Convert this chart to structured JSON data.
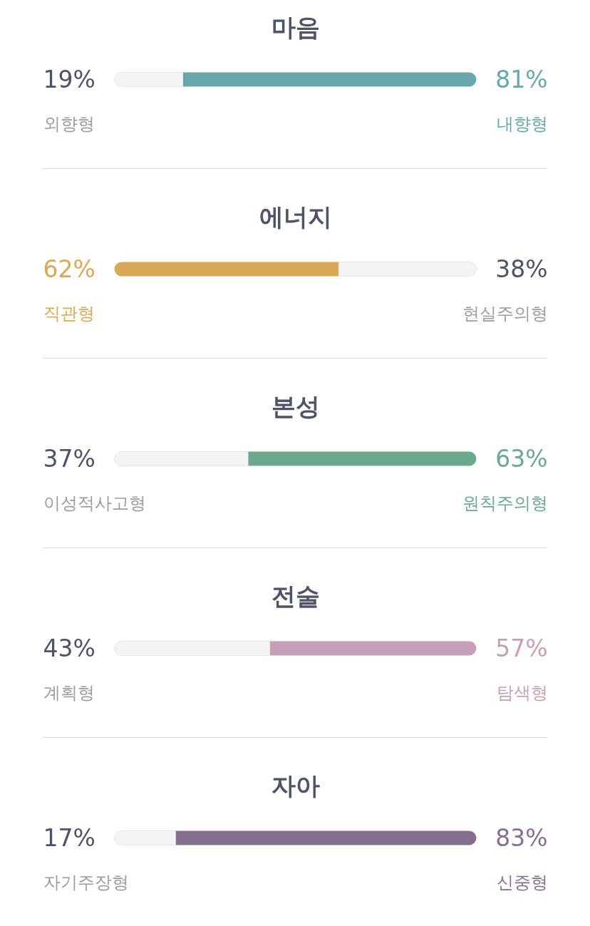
{
  "chart_data": [
    {
      "type": "bar",
      "orientation": "horizontal",
      "stacked": true,
      "title": "마음",
      "categories": [
        null
      ],
      "tick_labels": false,
      "series": [
        {
          "name": "외향형",
          "color": "#f4f4f4",
          "values": [
            19
          ],
          "value_labels": [
            "19%"
          ]
        },
        {
          "name": "내향형",
          "color": "#68a7aa",
          "values": [
            81
          ],
          "value_labels": [
            "81%"
          ]
        }
      ]
    },
    {
      "type": "bar",
      "orientation": "horizontal",
      "stacked": true,
      "title": "에너지",
      "categories": [
        null
      ],
      "tick_labels": false,
      "series": [
        {
          "name": "직관형",
          "color": "#d9a956",
          "values": [
            62
          ],
          "value_labels": [
            "62%"
          ]
        },
        {
          "name": "현실주의형",
          "color": "#f4f4f4",
          "values": [
            38
          ],
          "value_labels": [
            "38%"
          ]
        }
      ]
    },
    {
      "type": "bar",
      "orientation": "horizontal",
      "stacked": true,
      "title": "본성",
      "categories": [
        null
      ],
      "tick_labels": false,
      "series": [
        {
          "name": "이성적사고형",
          "color": "#f4f4f4",
          "values": [
            37
          ],
          "value_labels": [
            "37%"
          ]
        },
        {
          "name": "원칙주의형",
          "color": "#6aa98a",
          "values": [
            63
          ],
          "value_labels": [
            "63%"
          ]
        }
      ]
    },
    {
      "type": "bar",
      "orientation": "horizontal",
      "stacked": true,
      "title": "전술",
      "categories": [
        null
      ],
      "tick_labels": false,
      "series": [
        {
          "name": "계획형",
          "color": "#f4f4f4",
          "values": [
            43
          ],
          "value_labels": [
            "43%"
          ]
        },
        {
          "name": "탐색형",
          "color": "#c8a0b5",
          "values": [
            57
          ],
          "value_labels": [
            "57%"
          ]
        }
      ]
    },
    {
      "type": "bar",
      "orientation": "horizontal",
      "stacked": true,
      "title": "자아",
      "categories": [
        null
      ],
      "tick_labels": false,
      "series": [
        {
          "name": "자기주장형",
          "color": "#f4f4f4",
          "values": [
            17
          ],
          "value_labels": [
            "17%"
          ]
        },
        {
          "name": "신중형",
          "color": "#86708f",
          "values": [
            83
          ],
          "value_labels": [
            "83%"
          ]
        }
      ]
    }
  ]
}
